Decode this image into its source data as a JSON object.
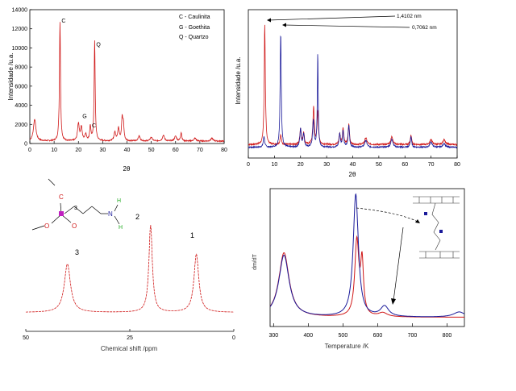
{
  "colors": {
    "red": "#d01818",
    "blue": "#1a1a9a",
    "green": "#22aa22",
    "magenta": "#c020c0",
    "axis": "#000000"
  },
  "chart_data": [
    {
      "id": "xrd_original",
      "type": "line",
      "xlabel": "2θ",
      "ylabel": "Intensidade /u.a.",
      "xlim": [
        0,
        80
      ],
      "ylim": [
        0,
        14000
      ],
      "x_ticks": [
        "0",
        "10",
        "20",
        "30",
        "40",
        "50",
        "60",
        "70",
        "80"
      ],
      "y_ticks": [
        "0",
        "2000",
        "4000",
        "6000",
        "8000",
        "10000",
        "12000",
        "14000"
      ],
      "legend": [
        "C - Caulinita",
        "G - Goethita",
        "Q - Quartzo"
      ],
      "peak_labels": [
        {
          "text": "C",
          "x": 12.4,
          "y": 12500
        },
        {
          "text": "Q",
          "x": 26.7,
          "y": 10000
        },
        {
          "text": "G",
          "x": 21.0,
          "y": 2500
        },
        {
          "text": "C",
          "x": 24.9,
          "y": 1500
        }
      ],
      "series": [
        {
          "color": "red",
          "peaks": [
            [
              2.0,
              2300,
              0.6
            ],
            [
              12.4,
              12500,
              0.25
            ],
            [
              20.0,
              1800,
              0.4
            ],
            [
              21.2,
              1400,
              0.4
            ],
            [
              23.0,
              700,
              0.4
            ],
            [
              24.9,
              1500,
              0.3
            ],
            [
              26.7,
              10500,
              0.25
            ],
            [
              35.0,
              900,
              0.4
            ],
            [
              36.5,
              1300,
              0.4
            ],
            [
              38.0,
              2200,
              0.3
            ],
            [
              38.5,
              1700,
              0.3
            ],
            [
              45.0,
              500,
              0.5
            ],
            [
              50.0,
              400,
              0.5
            ],
            [
              55.0,
              600,
              0.5
            ],
            [
              60.0,
              500,
              0.5
            ],
            [
              62.3,
              900,
              0.3
            ],
            [
              68.0,
              300,
              0.5
            ],
            [
              75.0,
              300,
              0.5
            ]
          ],
          "baseline": 250
        }
      ]
    },
    {
      "id": "xrd_intercalated",
      "type": "line",
      "xlabel": "2θ",
      "ylabel": "Intensidade /u.a.",
      "xlim": [
        0,
        80
      ],
      "ylim": [
        0,
        100
      ],
      "x_ticks": [
        "0",
        "10",
        "20",
        "30",
        "40",
        "50",
        "60",
        "70",
        "80"
      ],
      "annotations": [
        "1,4102 nm",
        "0,7062 nm"
      ],
      "series": [
        {
          "color": "red",
          "peaks": [
            [
              6.3,
              90,
              0.25
            ],
            [
              12.4,
              7,
              0.3
            ],
            [
              20.0,
              12,
              0.3
            ],
            [
              21.2,
              9,
              0.3
            ],
            [
              25.0,
              28,
              0.3
            ],
            [
              26.6,
              25,
              0.3
            ],
            [
              35.0,
              8,
              0.3
            ],
            [
              36.3,
              12,
              0.3
            ],
            [
              38.5,
              15,
              0.3
            ],
            [
              45.0,
              5,
              0.5
            ],
            [
              55.0,
              6,
              0.5
            ],
            [
              62.3,
              7,
              0.3
            ],
            [
              70.0,
              4,
              0.5
            ],
            [
              75.0,
              4,
              0.5
            ]
          ],
          "baseline": 4
        },
        {
          "color": "blue",
          "peaks": [
            [
              6.0,
              8,
              0.3
            ],
            [
              12.4,
              85,
              0.25
            ],
            [
              20.0,
              14,
              0.3
            ],
            [
              21.2,
              10,
              0.3
            ],
            [
              24.9,
              20,
              0.3
            ],
            [
              26.6,
              70,
              0.2
            ],
            [
              35.0,
              10,
              0.3
            ],
            [
              36.3,
              12,
              0.3
            ],
            [
              38.5,
              16,
              0.3
            ],
            [
              45.0,
              5,
              0.5
            ],
            [
              55.0,
              6,
              0.5
            ],
            [
              62.3,
              8,
              0.3
            ],
            [
              70.0,
              4,
              0.5
            ],
            [
              75.0,
              3,
              0.5
            ]
          ],
          "baseline": 2
        }
      ]
    },
    {
      "id": "nmr",
      "type": "line",
      "xlabel": "Chemical shift /ppm",
      "xlim": [
        50,
        0
      ],
      "x_ticks": [
        "50",
        "25",
        "0"
      ],
      "peak_labels": [
        "3",
        "2",
        "1"
      ],
      "structure_labels": [
        "C",
        "3",
        "O",
        "O",
        "N",
        "H",
        "H"
      ],
      "series": [
        {
          "color": "red",
          "peaks": [
            [
              40,
              50,
              0.9
            ],
            [
              20,
              90,
              0.5
            ],
            [
              9,
              60,
              0.7
            ]
          ],
          "baseline": 2
        }
      ]
    },
    {
      "id": "dtg",
      "type": "line",
      "ylabel": "dm/dT",
      "xlabel": "Temperature /K",
      "xlim": [
        290,
        850
      ],
      "x_ticks": [
        "300",
        "400",
        "500",
        "600",
        "700",
        "800"
      ],
      "series": [
        {
          "color": "red",
          "peaks": [
            [
              330,
              50,
              18
            ],
            [
              540,
              58,
              7
            ],
            [
              555,
              40,
              5
            ],
            [
              615,
              3,
              15
            ]
          ],
          "baseline": 4
        },
        {
          "color": "blue",
          "peaks": [
            [
              330,
              48,
              18
            ],
            [
              537,
              95,
              9
            ],
            [
              620,
              8,
              14
            ],
            [
              835,
              4,
              20
            ]
          ],
          "baseline": 4
        }
      ]
    }
  ]
}
